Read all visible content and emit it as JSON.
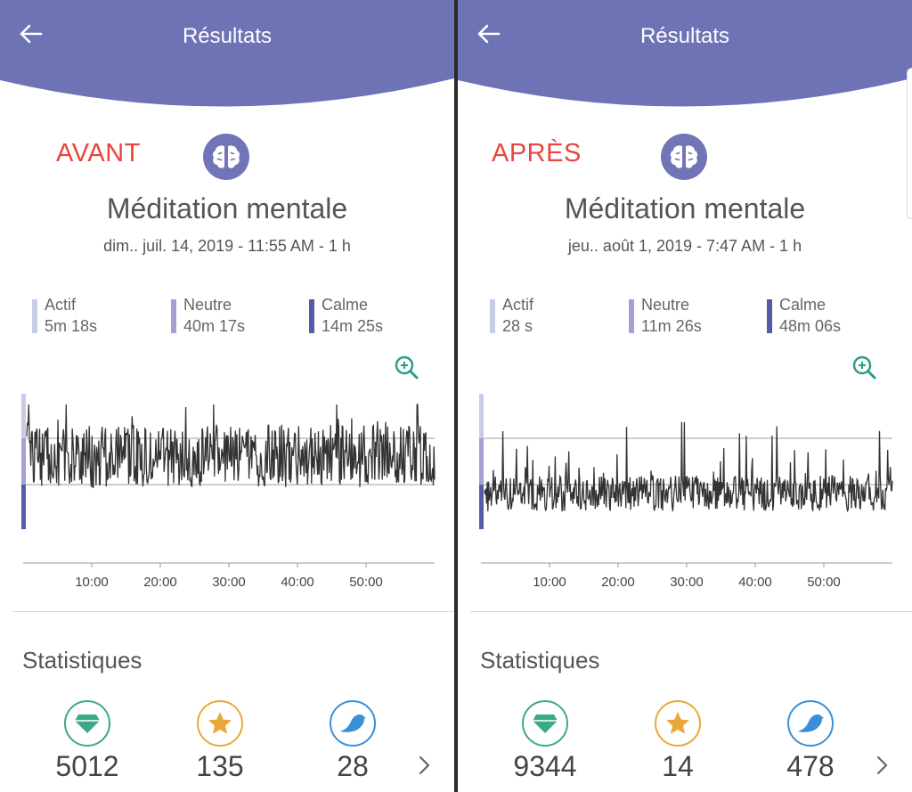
{
  "colors": {
    "header": "#6e73b6",
    "tag": "#e8453c",
    "actif": "#c9cce6",
    "neutre": "#a69fd3",
    "calme": "#565ba8",
    "trace": "#333333",
    "gem": "#3aa98a",
    "star": "#e8a93a",
    "bird": "#3a8fd6"
  },
  "panels": [
    {
      "header": {
        "title": "Résultats",
        "back_icon": "arrow-left-icon"
      },
      "tag": "AVANT",
      "session": {
        "title": "Méditation mentale",
        "date": "dim.. juil. 14, 2019 - 11:55 AM - 1 h"
      },
      "legend": [
        {
          "name": "Actif",
          "value": "5m 18s"
        },
        {
          "name": "Neutre",
          "value": "40m 17s"
        },
        {
          "name": "Calme",
          "value": "14m 25s"
        }
      ],
      "chart": {
        "ticks": [
          "10:00",
          "20:00",
          "30:00",
          "40:00",
          "50:00"
        ],
        "tick_minutes": [
          10,
          20,
          30,
          40,
          50
        ],
        "x_range_minutes": [
          0,
          60
        ],
        "profile": "busy"
      },
      "stats": {
        "title": "Statistiques",
        "items": [
          {
            "icon": "diamond-icon",
            "value": "5012"
          },
          {
            "icon": "star-icon",
            "value": "135"
          },
          {
            "icon": "bird-icon",
            "value": "28"
          }
        ]
      }
    },
    {
      "header": {
        "title": "Résultats",
        "back_icon": "arrow-left-icon"
      },
      "tag": "APRÈS",
      "session": {
        "title": "Méditation mentale",
        "date": "jeu.. août 1, 2019 - 7:47 AM - 1 h"
      },
      "legend": [
        {
          "name": "Actif",
          "value": "28 s"
        },
        {
          "name": "Neutre",
          "value": "11m 26s"
        },
        {
          "name": "Calme",
          "value": "48m 06s"
        }
      ],
      "chart": {
        "ticks": [
          "10:00",
          "20:00",
          "30:00",
          "40:00",
          "50:00"
        ],
        "tick_minutes": [
          10,
          20,
          30,
          40,
          50
        ],
        "x_range_minutes": [
          0,
          60
        ],
        "profile": "calm"
      },
      "stats": {
        "title": "Statistiques",
        "items": [
          {
            "icon": "diamond-icon",
            "value": "9344"
          },
          {
            "icon": "star-icon",
            "value": "14"
          },
          {
            "icon": "bird-icon",
            "value": "478"
          }
        ]
      }
    }
  ]
}
